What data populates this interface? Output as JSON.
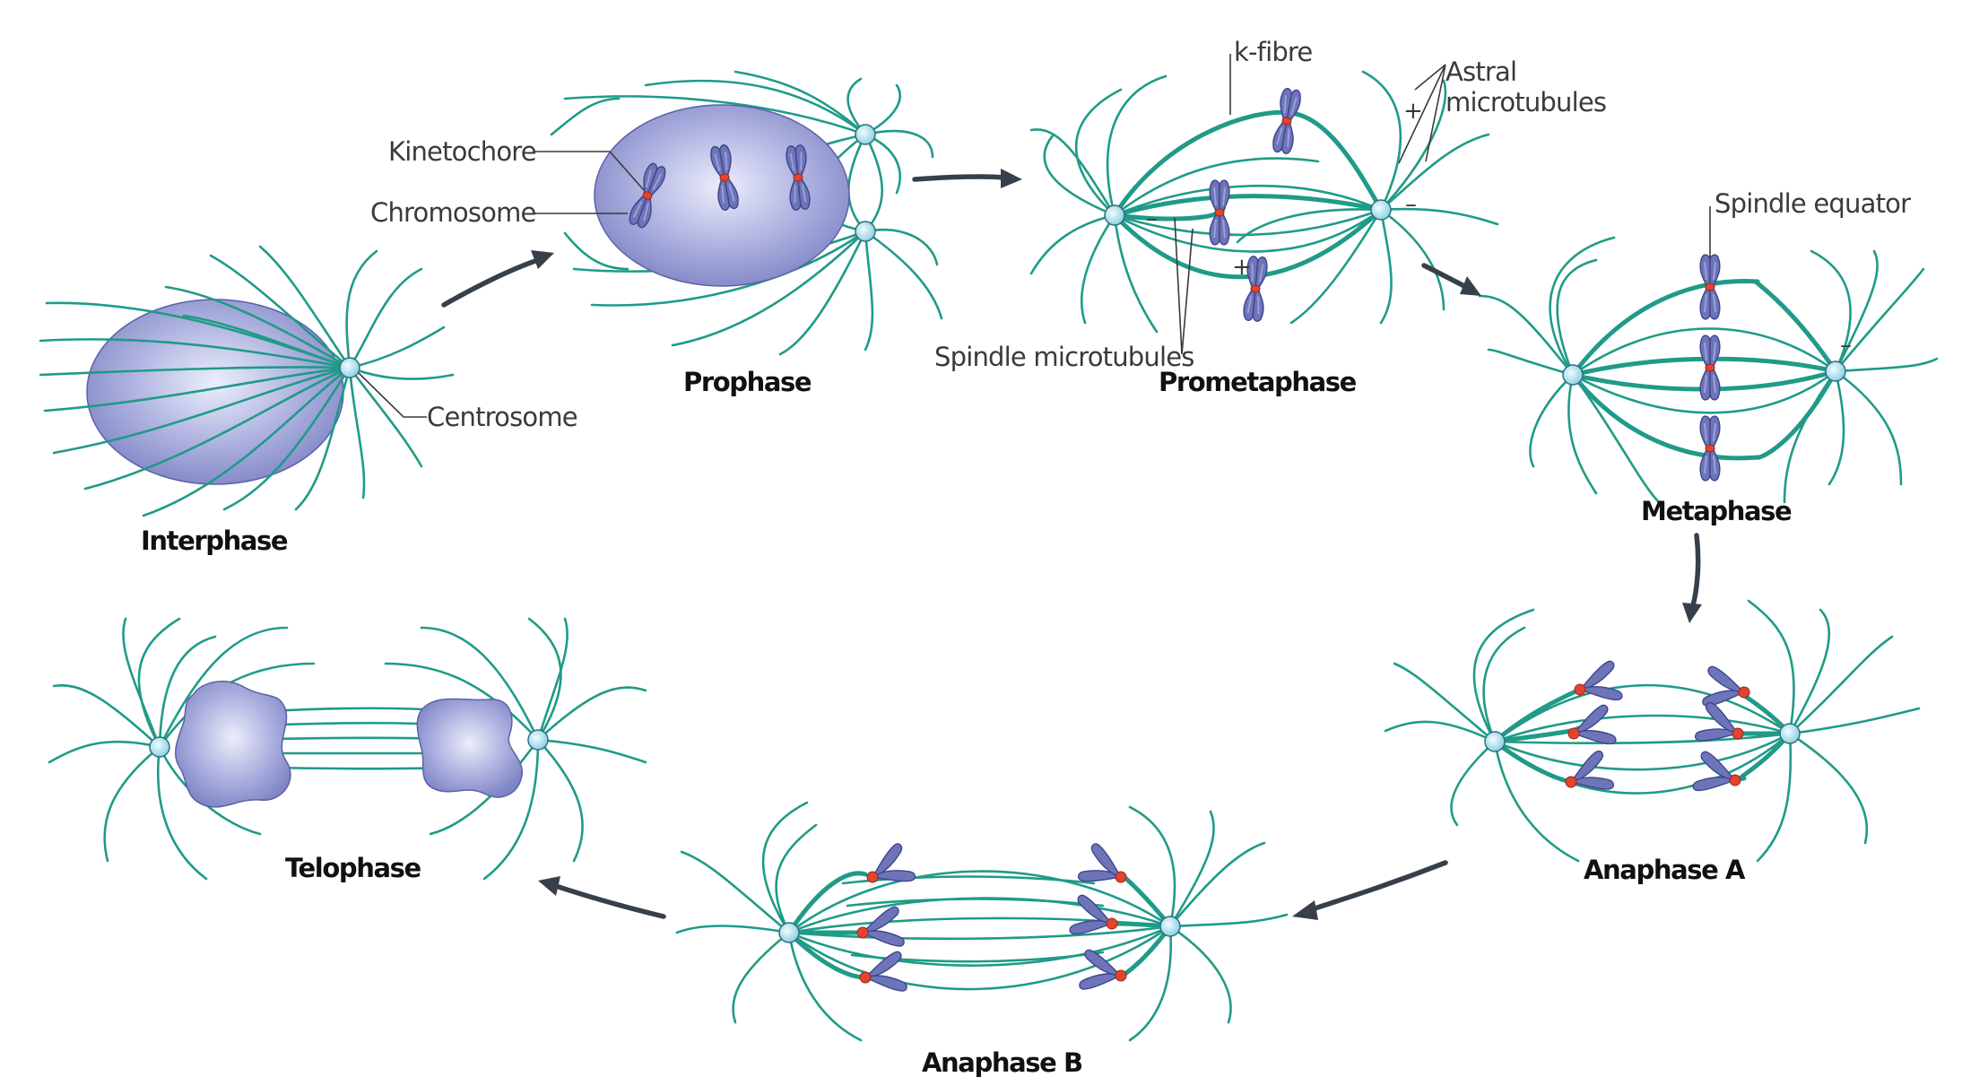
{
  "colors": {
    "microtubule": "#1f9b88",
    "centrosome": "#bfe9f3",
    "nucleus": "#a7abdc",
    "chromosome": "#6d75b8",
    "kinetochore": "#e0452f",
    "arrow": "#37404a"
  },
  "phases": {
    "interphase": "Interphase",
    "prophase": "Prophase",
    "prometaphase": "Prometaphase",
    "metaphase": "Metaphase",
    "anaphase_a": "Anaphase A",
    "anaphase_b": "Anaphase B",
    "telophase": "Telophase"
  },
  "callouts": {
    "kinetochore": "Kinetochore",
    "chromosome": "Chromosome",
    "centrosome": "Centrosome",
    "k_fibre": "k-fibre",
    "astral_line1": "Astral",
    "astral_line2": "microtubules",
    "spindle_microtubules": "Spindle microtubules",
    "spindle_equator": "Spindle equator"
  },
  "polarity_signs": {
    "plus": "+",
    "minus": "–"
  }
}
